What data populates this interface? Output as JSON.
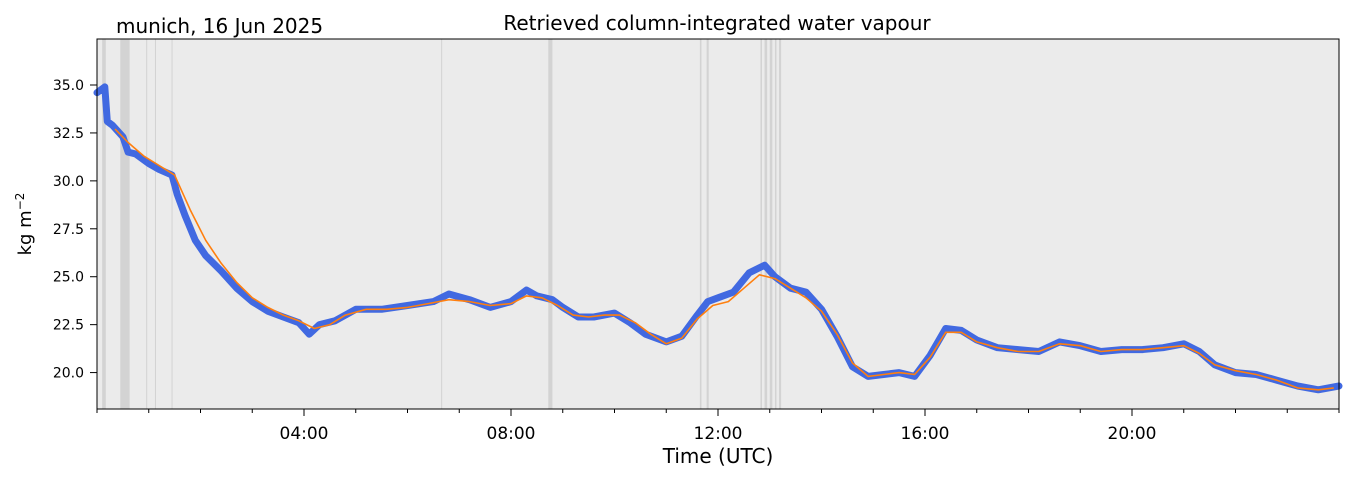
{
  "chart_data": {
    "type": "line",
    "title": "Retrieved column-integrated water vapour",
    "location_date": "munich, 16 Jun 2025",
    "xlabel": "Time (UTC)",
    "ylabel": "kg m",
    "ylabel_sup": "−2",
    "xlim_hours": [
      0,
      24
    ],
    "ylim": [
      18.1,
      37.4
    ],
    "x_ticks": [
      {
        "hour": 4,
        "label": "04:00"
      },
      {
        "hour": 8,
        "label": "08:00"
      },
      {
        "hour": 12,
        "label": "12:00"
      },
      {
        "hour": 16,
        "label": "16:00"
      },
      {
        "hour": 20,
        "label": "20:00"
      }
    ],
    "y_ticks": [
      {
        "value": 20.0,
        "label": "20.0"
      },
      {
        "value": 22.5,
        "label": "22.5"
      },
      {
        "value": 25.0,
        "label": "25.0"
      },
      {
        "value": 27.5,
        "label": "27.5"
      },
      {
        "value": 30.0,
        "label": "30.0"
      },
      {
        "value": 32.5,
        "label": "32.5"
      },
      {
        "value": 35.0,
        "label": "35.0"
      }
    ],
    "grid": false,
    "background": "#ebebeb",
    "colors": {
      "raw": "#4169e1",
      "smoothed": "#ff7f0e",
      "flagged": "#d3d3d3"
    },
    "flagged_intervals_hours": [
      [
        0.1,
        0.17
      ],
      [
        0.45,
        0.63
      ],
      [
        0.95,
        0.97
      ],
      [
        1.12,
        1.14
      ],
      [
        1.44,
        1.46
      ],
      [
        6.65,
        6.67
      ],
      [
        8.72,
        8.8
      ],
      [
        11.65,
        11.68
      ],
      [
        11.78,
        11.82
      ],
      [
        12.82,
        12.85
      ],
      [
        12.9,
        12.95
      ],
      [
        13.0,
        13.05
      ],
      [
        13.1,
        13.13
      ],
      [
        13.18,
        13.22
      ]
    ],
    "series": [
      {
        "style": "raw",
        "x": [
          0.0,
          0.15,
          0.2,
          0.3,
          0.5,
          0.6,
          0.75,
          1.0,
          1.2,
          1.45,
          1.55,
          1.7,
          1.9,
          2.1,
          2.4,
          2.7,
          3.0,
          3.3,
          3.6,
          3.9,
          4.1,
          4.3,
          4.6,
          5.0,
          5.5,
          6.0,
          6.5,
          6.8,
          7.2,
          7.6,
          8.0,
          8.3,
          8.5,
          8.8,
          9.0,
          9.3,
          9.6,
          10.0,
          10.3,
          10.6,
          11.0,
          11.3,
          11.6,
          11.8,
          12.0,
          12.3,
          12.6,
          12.9,
          13.1,
          13.4,
          13.7,
          14.0,
          14.3,
          14.6,
          14.9,
          15.2,
          15.5,
          15.8,
          16.1,
          16.4,
          16.7,
          17.0,
          17.4,
          17.8,
          18.2,
          18.6,
          19.0,
          19.4,
          19.8,
          20.2,
          20.6,
          21.0,
          21.3,
          21.6,
          22.0,
          22.4,
          22.8,
          23.2,
          23.6,
          24.0
        ],
        "y": [
          34.6,
          34.9,
          33.1,
          32.9,
          32.3,
          31.5,
          31.4,
          30.9,
          30.6,
          30.3,
          29.3,
          28.2,
          26.9,
          26.1,
          25.3,
          24.4,
          23.7,
          23.2,
          22.9,
          22.6,
          22.0,
          22.5,
          22.7,
          23.3,
          23.3,
          23.5,
          23.7,
          24.1,
          23.8,
          23.4,
          23.7,
          24.3,
          24.0,
          23.8,
          23.4,
          22.9,
          22.9,
          23.1,
          22.6,
          22.0,
          21.6,
          21.9,
          23.0,
          23.7,
          23.9,
          24.2,
          25.2,
          25.6,
          25.0,
          24.4,
          24.2,
          23.3,
          21.9,
          20.3,
          19.8,
          19.9,
          20.0,
          19.8,
          20.9,
          22.3,
          22.2,
          21.7,
          21.3,
          21.2,
          21.1,
          21.6,
          21.4,
          21.1,
          21.2,
          21.2,
          21.3,
          21.5,
          21.1,
          20.4,
          20.0,
          19.9,
          19.6,
          19.3,
          19.1,
          19.3
        ]
      },
      {
        "style": "smoothed",
        "x": [
          0.35,
          0.6,
          0.9,
          1.2,
          1.5,
          1.8,
          2.1,
          2.4,
          2.7,
          3.0,
          3.3,
          3.6,
          3.9,
          4.2,
          4.5,
          4.8,
          5.2,
          5.6,
          6.0,
          6.4,
          6.8,
          7.2,
          7.6,
          8.0,
          8.3,
          8.6,
          8.9,
          9.2,
          9.5,
          9.8,
          10.1,
          10.4,
          10.7,
          11.0,
          11.3,
          11.6,
          11.9,
          12.2,
          12.5,
          12.8,
          13.1,
          13.4,
          13.7,
          14.0,
          14.3,
          14.6,
          14.9,
          15.2,
          15.5,
          15.8,
          16.1,
          16.4,
          16.7,
          17.0,
          17.4,
          17.8,
          18.2,
          18.6,
          19.0,
          19.4,
          19.8,
          20.2,
          20.6,
          21.0,
          21.3,
          21.6,
          22.0,
          22.4,
          22.8,
          23.2,
          23.6,
          23.9
        ],
        "y": [
          32.7,
          32.0,
          31.3,
          30.8,
          30.3,
          28.5,
          26.9,
          25.7,
          24.7,
          23.9,
          23.4,
          23.0,
          22.7,
          22.3,
          22.5,
          23.0,
          23.3,
          23.3,
          23.4,
          23.6,
          23.8,
          23.7,
          23.5,
          23.6,
          24.0,
          23.9,
          23.5,
          23.0,
          22.9,
          23.0,
          23.0,
          22.6,
          22.0,
          21.5,
          21.8,
          22.8,
          23.5,
          23.7,
          24.4,
          25.1,
          24.9,
          24.4,
          23.9,
          23.2,
          22.0,
          20.5,
          19.8,
          19.9,
          20.0,
          19.9,
          20.8,
          22.1,
          22.1,
          21.6,
          21.3,
          21.1,
          21.1,
          21.5,
          21.4,
          21.1,
          21.2,
          21.2,
          21.3,
          21.4,
          21.0,
          20.4,
          20.1,
          19.9,
          19.6,
          19.2,
          19.1,
          19.2
        ]
      }
    ]
  }
}
